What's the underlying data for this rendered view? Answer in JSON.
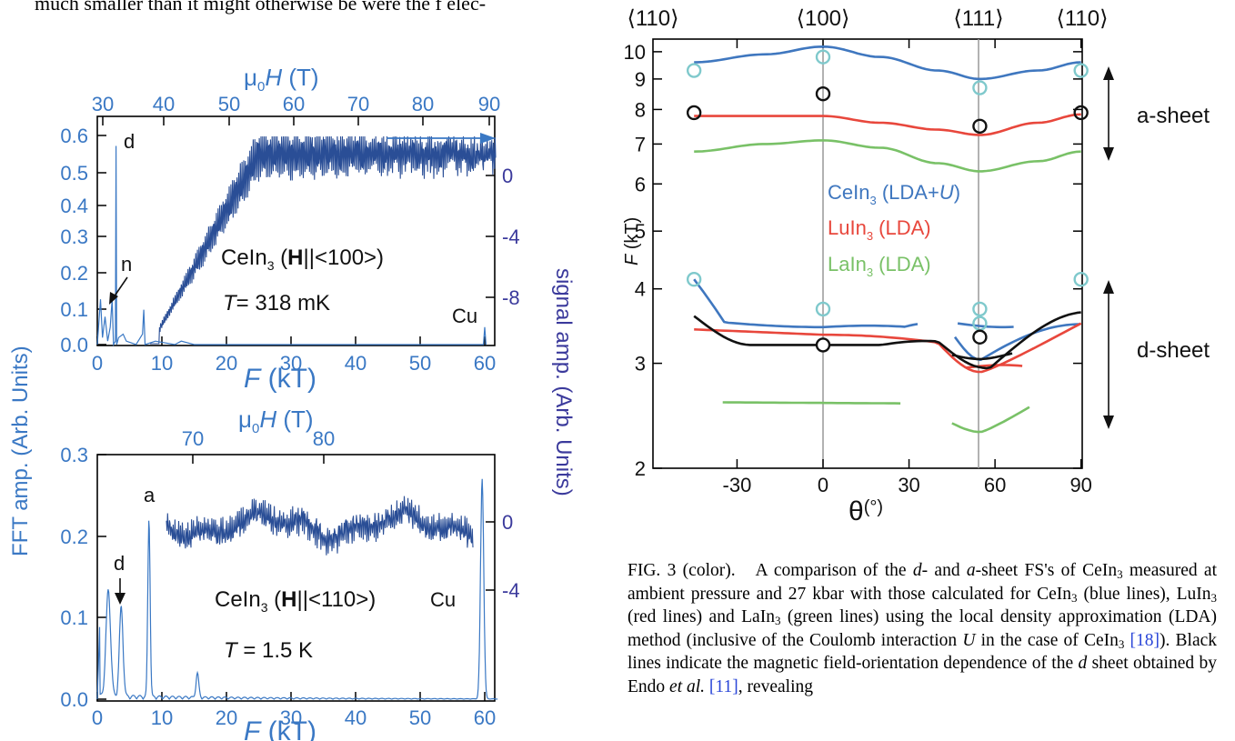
{
  "intro_text": "much smaller than it might otherwise be were the f elec-",
  "colors": {
    "axis_blue": "#3a78c4",
    "signal_blue": "#2a4e96",
    "right_axis_purple": "#3b3a9c",
    "ceIn3": "#3f77bf",
    "luIn3": "#e8473c",
    "laIn3": "#79c167",
    "black": "#111111",
    "cyan_marker": "#7fc9cc"
  },
  "panel_top": {
    "top_axis_label": "μ₀H (T)",
    "top_ticks": [
      "30",
      "40",
      "50",
      "60",
      "70",
      "80",
      "90"
    ],
    "left_ticks": [
      "0.0",
      "0.1",
      "0.2",
      "0.3",
      "0.4",
      "0.5",
      "0.6"
    ],
    "right_ticks": [
      "0",
      "-4",
      "-8"
    ],
    "bottom_ticks": [
      "0",
      "10",
      "20",
      "30",
      "40",
      "50",
      "60"
    ],
    "bottom_axis_label": "F (kT)",
    "compound_label": "CeIn₃ (H||<100>)",
    "temperature": "T= 318 mK",
    "peak_d": "d",
    "peak_n": "n",
    "peak_cu": "Cu"
  },
  "panel_bottom": {
    "top_axis_label": "μ₀H (T)",
    "top_ticks": [
      "70",
      "80"
    ],
    "left_ticks": [
      "0.0",
      "0.1",
      "0.2",
      "0.3"
    ],
    "right_ticks": [
      "0",
      "-4"
    ],
    "bottom_ticks": [
      "0",
      "10",
      "20",
      "30",
      "40",
      "50",
      "60"
    ],
    "bottom_axis_label": "F (kT)",
    "compound_label": "CeIn₃ (H||<110>)",
    "temperature": "T = 1.5 K",
    "peak_a": "a",
    "peak_d": "d",
    "peak_cu": "Cu"
  },
  "left_axis_title": "FFT amp. (Arb. Units)",
  "right_axis_title": "signal amp. (Arb. Units)",
  "panel_right": {
    "direction_labels": [
      "⟨110⟩",
      "⟨100⟩",
      "⟨111⟩",
      "⟨110⟩"
    ],
    "y_ticks": [
      "2",
      "3",
      "4",
      "5",
      "6",
      "7",
      "8",
      "9",
      "10"
    ],
    "x_ticks": [
      "-30",
      "0",
      "30",
      "60",
      "90"
    ],
    "y_label": "F (kT)",
    "x_label": "θ(°)",
    "legend": [
      "CeIn₃ (LDA+U)",
      "LuIn₃ (LDA)",
      "LaIn₃ (LDA)"
    ],
    "a_sheet": "a-sheet",
    "d_sheet": "d-sheet"
  },
  "chart_data": [
    {
      "type": "line",
      "title": "",
      "xlabel": "θ(°)",
      "ylabel": "F (kT)",
      "xlim": [
        -45,
        90
      ],
      "ylim": [
        2,
        10.5
      ],
      "y_scale": "log",
      "series": [
        {
          "name": "CeIn₃ (LDA+U)",
          "x": [
            -45,
            -20,
            0,
            20,
            40,
            54.7,
            75,
            90
          ],
          "y": [
            9.6,
            9.9,
            10.2,
            9.8,
            9.3,
            9.0,
            9.3,
            9.6
          ]
        },
        {
          "name": "LuIn₃ (LDA)",
          "x": [
            -45,
            -20,
            0,
            20,
            40,
            54.7,
            75,
            90
          ],
          "y": [
            7.8,
            7.8,
            7.8,
            7.6,
            7.4,
            7.25,
            7.6,
            7.85
          ]
        },
        {
          "name": "LaIn₃ (LDA)",
          "x": [
            -45,
            -20,
            0,
            20,
            40,
            54.7,
            75,
            90
          ],
          "y": [
            6.8,
            7.0,
            7.1,
            6.9,
            6.5,
            6.3,
            6.55,
            6.8
          ]
        }
      ],
      "measured_ambient": {
        "x": [
          -45,
          0,
          54.7,
          90
        ],
        "y": [
          7.9,
          8.5,
          7.5,
          7.9
        ]
      },
      "measured_27kbar": {
        "x": [
          -45,
          0,
          54.7,
          54.7,
          54.7,
          90
        ],
        "y": [
          9.3,
          9.8,
          8.7,
          3.7,
          3.5,
          9.3
        ]
      }
    },
    {
      "type": "line",
      "title": "",
      "xlabel": "F (kT)",
      "ylabel": "FFT amp. (Arb. Units)",
      "xlim": [
        0,
        62
      ],
      "ylim": [
        0,
        0.6
      ],
      "peaks": {
        "categories": [
          "d",
          "n",
          "Cu"
        ],
        "x": [
          2.9,
          2.3,
          60
        ],
        "values": [
          0.57,
          0.13,
          0.05
        ]
      }
    },
    {
      "type": "line",
      "title": "",
      "xlabel": "F (kT)",
      "ylabel": "FFT amp. (Arb. Units)",
      "xlim": [
        0,
        62
      ],
      "ylim": [
        0,
        0.3
      ],
      "peaks": {
        "categories": [
          "d",
          "a",
          "Cu"
        ],
        "x": [
          3.5,
          8.0,
          59.5
        ],
        "values": [
          0.11,
          0.22,
          0.27
        ]
      }
    }
  ],
  "caption": {
    "fig_label": "FIG. 3 (color).",
    "text_1": "A comparison of the",
    "d_italic": "d",
    "text_2": "- and",
    "a_italic": "a",
    "text_3": "-sheet FS's of",
    "cein3_1": "CeIn",
    "text_4": "measured at ambient pressure and 27 kbar with those calculated for",
    "cein3_2": "CeIn",
    "text_5": "(blue lines),",
    "luin3": "LuIn",
    "text_6": "(red lines) and",
    "lain3": "LaIn",
    "text_7": "(green lines) using the local density approximation (LDA) method (inclusive of the Coulomb interaction",
    "u_italic": "U",
    "text_8": "in the case of",
    "cein3_3": "CeIn",
    "ref_18": "[18]",
    "text_9": "). Black lines indicate the magnetic field-orientation dependence of the",
    "d_italic_2": "d",
    "text_10": "sheet obtained by Endo",
    "et_al": "et al.",
    "ref_11": "[11]",
    "text_11": ", revealing",
    "sub3": "3"
  }
}
